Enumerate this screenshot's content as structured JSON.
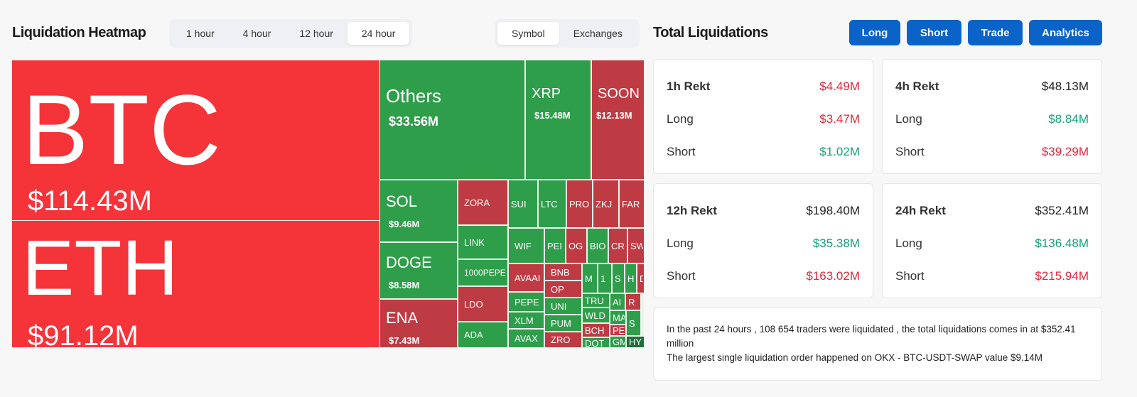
{
  "heatmap": {
    "title": "Liquidation Heatmap",
    "time_tabs": [
      "1 hour",
      "4 hour",
      "12 hour",
      "24 hour"
    ],
    "active_time_tab": "24 hour",
    "view_tabs": [
      "Symbol",
      "Exchanges"
    ],
    "active_view_tab": "Symbol",
    "colors": {
      "bright-red": "#f5343a",
      "red": "#bf3b43",
      "green": "#2f9e4b",
      "dark-green": "#1f6e3a"
    },
    "tiles": [
      {
        "symbol": "BTC",
        "value": "$114.43M",
        "tone": "bright-red"
      },
      {
        "symbol": "ETH",
        "value": "$91.12M",
        "tone": "bright-red"
      },
      {
        "symbol": "Others",
        "value": "$33.56M",
        "tone": "green"
      },
      {
        "symbol": "XRP",
        "value": "$15.48M",
        "tone": "green"
      },
      {
        "symbol": "SOON",
        "value": "$12.13M",
        "tone": "red"
      },
      {
        "symbol": "SOL",
        "value": "$9.46M",
        "tone": "green"
      },
      {
        "symbol": "DOGE",
        "value": "$8.58M",
        "tone": "green"
      },
      {
        "symbol": "ENA",
        "value": "$7.43M",
        "tone": "red"
      },
      {
        "symbol": "ZORA",
        "tone": "red"
      },
      {
        "symbol": "LINK",
        "tone": "green"
      },
      {
        "symbol": "1000PEPE",
        "tone": "green"
      },
      {
        "symbol": "LDO",
        "tone": "red"
      },
      {
        "symbol": "ADA",
        "tone": "green"
      },
      {
        "symbol": "SUI",
        "tone": "green"
      },
      {
        "symbol": "LTC",
        "tone": "green"
      },
      {
        "symbol": "PRO",
        "tone": "red"
      },
      {
        "symbol": "ZKJ",
        "tone": "red"
      },
      {
        "symbol": "FAR",
        "tone": "red"
      },
      {
        "symbol": "WIF",
        "tone": "green"
      },
      {
        "symbol": "PEI",
        "tone": "green"
      },
      {
        "symbol": "OG",
        "tone": "red"
      },
      {
        "symbol": "BIO",
        "tone": "green"
      },
      {
        "symbol": "CR",
        "tone": "red"
      },
      {
        "symbol": "SW",
        "tone": "red"
      },
      {
        "symbol": "AVAAI",
        "tone": "red"
      },
      {
        "symbol": "PEPE",
        "tone": "green"
      },
      {
        "symbol": "XLM",
        "tone": "green"
      },
      {
        "symbol": "AVAX",
        "tone": "green"
      },
      {
        "symbol": "BNB",
        "tone": "red"
      },
      {
        "symbol": "OP",
        "tone": "red"
      },
      {
        "symbol": "UNI",
        "tone": "green"
      },
      {
        "symbol": "PUM",
        "tone": "green"
      },
      {
        "symbol": "ZRO",
        "tone": "red"
      },
      {
        "symbol": "M",
        "tone": "green"
      },
      {
        "symbol": "1",
        "tone": "green"
      },
      {
        "symbol": "S",
        "tone": "green"
      },
      {
        "symbol": "H",
        "tone": "green"
      },
      {
        "symbol": "D",
        "tone": "red"
      },
      {
        "symbol": "TRU",
        "tone": "green"
      },
      {
        "symbol": "WLD",
        "tone": "green"
      },
      {
        "symbol": "BCH",
        "tone": "red"
      },
      {
        "symbol": "DOT",
        "tone": "green"
      },
      {
        "symbol": "AI",
        "tone": "green"
      },
      {
        "symbol": "R",
        "tone": "red"
      },
      {
        "symbol": "MAG",
        "tone": "green"
      },
      {
        "symbol": "PEN",
        "tone": "red"
      },
      {
        "symbol": "GMX",
        "tone": "green"
      },
      {
        "symbol": "S",
        "tone": "green"
      },
      {
        "symbol": "HY",
        "tone": "dark-green"
      }
    ]
  },
  "totals": {
    "title": "Total Liquidations",
    "buttons": [
      "Long",
      "Short",
      "Trade",
      "Analytics"
    ],
    "cards": [
      {
        "label": "1h Rekt",
        "total": "$4.49M",
        "total_tone": "red",
        "long_label": "Long",
        "long": "$3.47M",
        "long_tone": "red",
        "short_label": "Short",
        "short": "$1.02M",
        "short_tone": "green"
      },
      {
        "label": "4h Rekt",
        "total": "$48.13M",
        "total_tone": "dark",
        "long_label": "Long",
        "long": "$8.84M",
        "long_tone": "green",
        "short_label": "Short",
        "short": "$39.29M",
        "short_tone": "red"
      },
      {
        "label": "12h Rekt",
        "total": "$198.40M",
        "total_tone": "dark",
        "long_label": "Long",
        "long": "$35.38M",
        "long_tone": "green",
        "short_label": "Short",
        "short": "$163.02M",
        "short_tone": "red"
      },
      {
        "label": "24h Rekt",
        "total": "$352.41M",
        "total_tone": "dark",
        "long_label": "Long",
        "long": "$136.48M",
        "long_tone": "green",
        "short_label": "Short",
        "short": "$215.94M",
        "short_tone": "red"
      }
    ],
    "summary_line1": "In the past 24 hours , 108 654 traders were liquidated , the total liquidations comes in at $352.41 million",
    "summary_line2": "The largest single liquidation order happened on OKX - BTC-USDT-SWAP value $9.14M"
  }
}
